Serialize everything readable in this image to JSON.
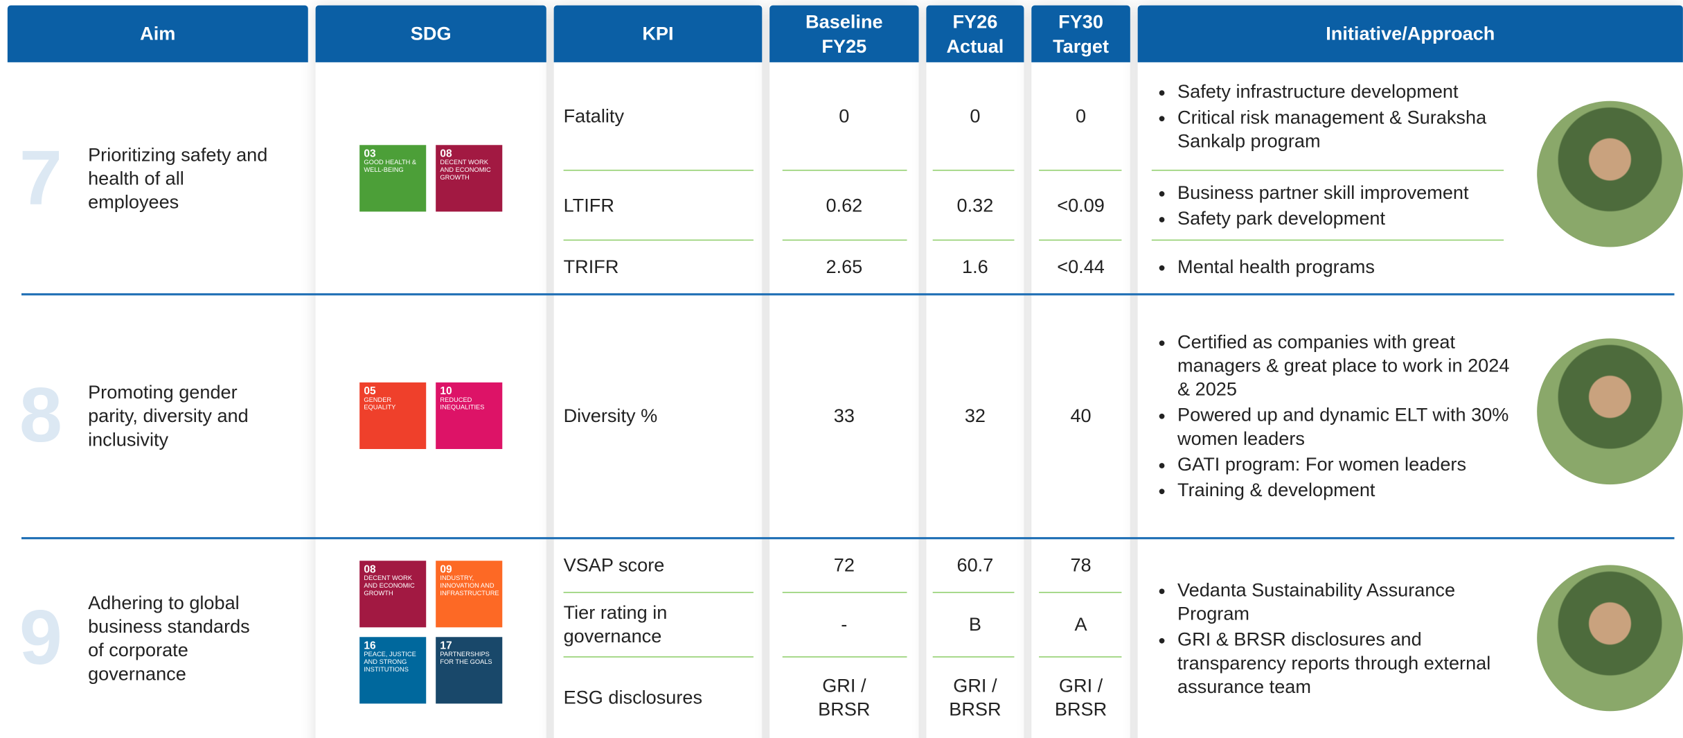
{
  "header": {
    "columns": [
      [
        "Aim"
      ],
      [
        "SDG"
      ],
      [
        "KPI"
      ],
      [
        "Baseline",
        "FY25"
      ],
      [
        "FY26",
        "Actual"
      ],
      [
        "FY30",
        "Target"
      ],
      [
        "Initiative/Approach"
      ]
    ]
  },
  "rows": [
    {
      "number": "7",
      "aim": "Prioritizing safety and health of all employees",
      "sdgs": [
        {
          "code": "03",
          "name": "GOOD HEALTH & WELL-BEING",
          "color": "#4c9f38"
        },
        {
          "code": "08",
          "name": "DECENT WORK AND ECONOMIC GROWTH",
          "color": "#a21942"
        }
      ],
      "kpis": [
        {
          "name": "Fatality",
          "baseline": 0,
          "fy26": 0,
          "fy30": 0
        },
        {
          "name": "LTIFR",
          "baseline": 0.62,
          "fy26": 0.32,
          "fy30": "<0.09"
        },
        {
          "name": "TRIFR",
          "baseline": 2.65,
          "fy26": 1.6,
          "fy30": "<0.44"
        }
      ],
      "initiatives": [
        [
          "Safety infrastructure development",
          "Critical risk management & Suraksha Sankalp program"
        ],
        [
          "Business partner skill improvement",
          "Safety park development"
        ],
        [
          "Mental health programs"
        ]
      ]
    },
    {
      "number": "8",
      "aim": "Promoting gender parity, diversity and inclusivity",
      "sdgs": [
        {
          "code": "05",
          "name": "GENDER EQUALITY",
          "color": "#ef402b"
        },
        {
          "code": "10",
          "name": "REDUCED INEQUALITIES",
          "color": "#dd1367"
        }
      ],
      "kpis": [
        {
          "name": "Diversity %",
          "baseline": 33,
          "fy26": 32,
          "fy30": 40
        }
      ],
      "initiatives": [
        [
          "Certified as companies with great managers & great place to work in 2024 & 2025",
          "Powered up and dynamic ELT with 30% women leaders",
          "GATI program: For women leaders",
          "Training & development"
        ]
      ]
    },
    {
      "number": "9",
      "aim": "Adhering to global business standards of corporate governance",
      "sdgs": [
        {
          "code": "08",
          "name": "DECENT WORK AND ECONOMIC GROWTH",
          "color": "#a21942"
        },
        {
          "code": "09",
          "name": "INDUSTRY, INNOVATION AND INFRASTRUCTURE",
          "color": "#fd6925"
        },
        {
          "code": "16",
          "name": "PEACE, JUSTICE AND STRONG INSTITUTIONS",
          "color": "#00689d"
        },
        {
          "code": "17",
          "name": "PARTNERSHIPS FOR THE GOALS",
          "color": "#19486a"
        }
      ],
      "kpis": [
        {
          "name": "VSAP score",
          "baseline": 72,
          "fy26": 60.7,
          "fy30": 78
        },
        {
          "name": "Tier rating in governance",
          "baseline": "-",
          "fy26": "B",
          "fy30": "A"
        },
        {
          "name": "ESG disclosures",
          "baseline": "GRI / BRSR",
          "fy26": "GRI / BRSR",
          "fy30": "GRI / BRSR"
        }
      ],
      "initiatives": [
        [
          "Vedanta Sustainability Assurance Program",
          "GRI & BRSR disclosures and transparency reports through external assurance team"
        ]
      ]
    }
  ]
}
